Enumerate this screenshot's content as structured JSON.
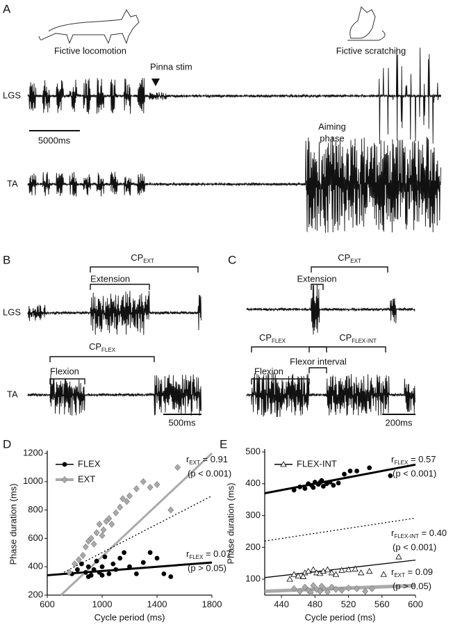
{
  "panels": {
    "A": {
      "label": "A",
      "left_caption": "Fictive locomotion",
      "right_caption": "Fictive scratching",
      "stim": "Pinna stim",
      "muscle_1": "LGS",
      "muscle_2": "TA",
      "scale": "5000ms",
      "aiming": "Aiming",
      "aiming_2": "phase"
    },
    "B": {
      "label": "B",
      "cp_ext": {
        "main": "CP",
        "sub": "EXT"
      },
      "extension": "Extension",
      "muscle_1": "LGS",
      "cp_flex": {
        "main": "CP",
        "sub": "FLEX"
      },
      "flexion": "Flexion",
      "muscle_2": "TA",
      "scale": "500ms"
    },
    "C": {
      "label": "C",
      "cp_ext": {
        "main": "CP",
        "sub": "EXT"
      },
      "extension": "Extension",
      "cp_flex": {
        "main": "CP",
        "sub": "FLEX"
      },
      "cp_flex_int": {
        "main": "CP",
        "sub": "FLEX-INT"
      },
      "flexor_interval": "Flexor interval",
      "flexion": "Flexion",
      "scale": "200ms"
    }
  },
  "chart_data": [
    {
      "type": "scatter",
      "panel": "D",
      "x_label": "Cycle period (ms)",
      "y_label": "Phase duration (ms)",
      "xlim": [
        600,
        1800
      ],
      "ylim": [
        200,
        1200
      ],
      "xticks": [
        600,
        1000,
        1400,
        1800
      ],
      "yticks": [
        200,
        400,
        600,
        800,
        1000,
        1200
      ],
      "series": [
        {
          "name": "FLEX",
          "color": "#000000",
          "marker": "circle",
          "x": [
            780,
            820,
            850,
            880,
            900,
            920,
            940,
            960,
            980,
            1000,
            1020,
            1050,
            1080,
            1100,
            1130,
            1160,
            1200,
            1250,
            1300,
            1350,
            1400,
            1450,
            1500,
            900,
            1000
          ],
          "y": [
            350,
            380,
            420,
            360,
            400,
            340,
            380,
            440,
            360,
            400,
            470,
            350,
            420,
            380,
            460,
            500,
            400,
            350,
            430,
            500,
            460,
            350,
            330,
            330,
            340
          ]
        },
        {
          "name": "EXT",
          "color": "#aaaaaa",
          "marker": "diamond",
          "x": [
            760,
            800,
            830,
            860,
            880,
            900,
            920,
            940,
            960,
            980,
            1000,
            1010,
            1030,
            1050,
            1070,
            1100,
            1130,
            1150,
            1180,
            1200,
            1250,
            1300,
            1350,
            1400,
            1550,
            1500
          ],
          "y": [
            360,
            420,
            450,
            480,
            540,
            580,
            600,
            560,
            640,
            700,
            620,
            660,
            720,
            740,
            700,
            780,
            820,
            880,
            860,
            900,
            950,
            1000,
            960,
            980,
            1100,
            800
          ]
        }
      ],
      "fit_lines": [
        {
          "color": "#000000",
          "width": 3,
          "dash": "none",
          "x": [
            600,
            1800
          ],
          "y": [
            340,
            430
          ]
        },
        {
          "color": "#aaaaaa",
          "width": 3,
          "dash": "none",
          "x": [
            700,
            1800
          ],
          "y": [
            200,
            1200
          ]
        },
        {
          "color": "#000000",
          "width": 1.3,
          "dash": "2 3",
          "x": [
            700,
            1800
          ],
          "y": [
            350,
            900
          ]
        }
      ],
      "annotations": [
        {
          "main": "r",
          "sub": "EXT",
          "rest": " = 0.91",
          "p": "(p < 0.001)"
        },
        {
          "main": "r",
          "sub": "FLEX",
          "rest": " = 0.07",
          "p": "(p > 0.05)"
        }
      ]
    },
    {
      "type": "scatter",
      "panel": "E",
      "x_label": "Cycle period (ms)",
      "y_label": "Phase duration (ms)",
      "xlim": [
        420,
        600
      ],
      "ylim": [
        50,
        500
      ],
      "xticks": [
        440,
        480,
        520,
        560,
        600
      ],
      "yticks": [
        100,
        200,
        300,
        400,
        500
      ],
      "series": [
        {
          "color": "#000000",
          "marker": "circle",
          "x": [
            455,
            462,
            468,
            472,
            476,
            480,
            484,
            488,
            490,
            494,
            498,
            502,
            508,
            515,
            522,
            530,
            545,
            570,
            478,
            486
          ],
          "y": [
            380,
            390,
            385,
            400,
            395,
            405,
            398,
            410,
            392,
            400,
            405,
            395,
            402,
            430,
            440,
            440,
            450,
            425,
            388,
            404
          ]
        },
        {
          "name": "FLEX-INT",
          "color": "#000000",
          "marker": "triangle",
          "x": [
            450,
            455,
            460,
            468,
            472,
            478,
            482,
            486,
            490,
            495,
            500,
            505,
            512,
            520,
            528,
            535,
            545,
            562,
            580,
            466
          ],
          "y": [
            100,
            115,
            110,
            120,
            125,
            130,
            120,
            118,
            125,
            130,
            120,
            115,
            128,
            130,
            132,
            120,
            125,
            115,
            170,
            108
          ]
        },
        {
          "color": "#aaaaaa",
          "marker": "diamond",
          "x": [
            455,
            462,
            468,
            472,
            478,
            482,
            486,
            490,
            495,
            500,
            505,
            512,
            520,
            530,
            540,
            548,
            475,
            488
          ],
          "y": [
            70,
            62,
            75,
            65,
            80,
            68,
            62,
            72,
            60,
            75,
            68,
            65,
            72,
            70,
            62,
            70,
            58,
            78
          ]
        }
      ],
      "fit_lines": [
        {
          "color": "#000000",
          "width": 3,
          "dash": "none",
          "x": [
            420,
            600
          ],
          "y": [
            370,
            460
          ]
        },
        {
          "color": "#000000",
          "width": 1.3,
          "dash": "none",
          "x": [
            420,
            600
          ],
          "y": [
            105,
            160
          ]
        },
        {
          "color": "#aaaaaa",
          "width": 5,
          "dash": "none",
          "x": [
            420,
            600
          ],
          "y": [
            62,
            80
          ]
        },
        {
          "color": "#000000",
          "width": 1.3,
          "dash": "2 3",
          "x": [
            420,
            600
          ],
          "y": [
            220,
            292
          ]
        }
      ],
      "annotations": [
        {
          "main": "r",
          "sub": "FLEX",
          "rest": " = 0.57",
          "p": "(p < 0.001)"
        },
        {
          "main": "r",
          "sub": "FLEX-INT",
          "rest": " = 0.40",
          "p": "(p < 0.001)"
        },
        {
          "main": "r",
          "sub": "EXT",
          "rest": " = 0.09",
          "p": "(p > 0.05)"
        }
      ]
    }
  ]
}
